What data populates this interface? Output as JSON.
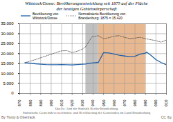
{
  "chart_data": {
    "type": "line",
    "title": "Wittstock/Dosse: Bevölkerungsentwicklung seit 1875 auf der Fläche\nder heutigen Gebietsкörperschaft",
    "series": [
      {
        "name": "Bevölkerung von\nWittstock/Dosse",
        "color": "#2060a8",
        "line_style": "solid",
        "x": [
          1875,
          1880,
          1885,
          1890,
          1895,
          1900,
          1905,
          1910,
          1915,
          1920,
          1925,
          1930,
          1933,
          1935,
          1939,
          1945,
          1950,
          1955,
          1960,
          1965,
          1970,
          1975,
          1980,
          1985,
          1990,
          1991,
          1995,
          2000,
          2005,
          2010
        ],
        "values": [
          15420,
          15200,
          14900,
          14700,
          14500,
          14400,
          14400,
          14500,
          14400,
          14300,
          14500,
          14700,
          14800,
          15000,
          15300,
          15600,
          20500,
          20300,
          19800,
          19200,
          18800,
          18400,
          18700,
          19800,
          20200,
          20800,
          19200,
          17000,
          15500,
          14400
        ]
      },
      {
        "name": "Normalisierte Bevölkerung von\nBrandenburg: 1875 = 15.420",
        "color": "#505050",
        "line_style": "dotted",
        "x": [
          1875,
          1880,
          1885,
          1890,
          1895,
          1900,
          1905,
          1910,
          1915,
          1920,
          1925,
          1930,
          1933,
          1935,
          1939,
          1945,
          1950,
          1955,
          1960,
          1965,
          1970,
          1975,
          1980,
          1985,
          1990,
          1995,
          2000,
          2005,
          2010
        ],
        "values": [
          15420,
          16200,
          17000,
          17900,
          18800,
          19700,
          20600,
          21400,
          21500,
          20500,
          21200,
          22300,
          23500,
          25200,
          28500,
          29000,
          27500,
          28000,
          28800,
          29000,
          28200,
          27500,
          27800,
          28200,
          27500,
          27000,
          26500,
          25800,
          26800
        ]
      }
    ],
    "shaded_regions": [
      {
        "x": [
          1933,
          1945
        ],
        "color": "#c0c0c0"
      },
      {
        "x": [
          1945,
          1990
        ],
        "color": "#e8b890"
      }
    ],
    "xlim": [
      1870,
      2010
    ],
    "xticks": [
      1870,
      1880,
      1890,
      1900,
      1910,
      1920,
      1930,
      1940,
      1950,
      1960,
      1970,
      1980,
      1990,
      2000,
      2010
    ],
    "ylim": [
      0,
      35000
    ],
    "yticks": [
      0,
      {
        "value": 5000,
        "label": "5.000"
      },
      {
        "value": 10000,
        "label": "10.000"
      },
      {
        "value": 15000,
        "label": "15.000"
      },
      {
        "value": 20000,
        "label": "20.000"
      },
      {
        "value": 25000,
        "label": "25.000"
      },
      {
        "value": 30000,
        "label": "30.000"
      },
      {
        "value": 35000,
        "label": "35.000"
      }
    ],
    "grid": true,
    "legend": "upper left",
    "source": "Quelle: Amt für Statistik Berlin-Brandenburg\nStatistische Gemeindeverzeichnisse und Bevölkerung der Gemeinden im Land Brandenburg",
    "credits": [
      "By Tlusty & Ottertrack",
      "CC /by"
    ]
  }
}
